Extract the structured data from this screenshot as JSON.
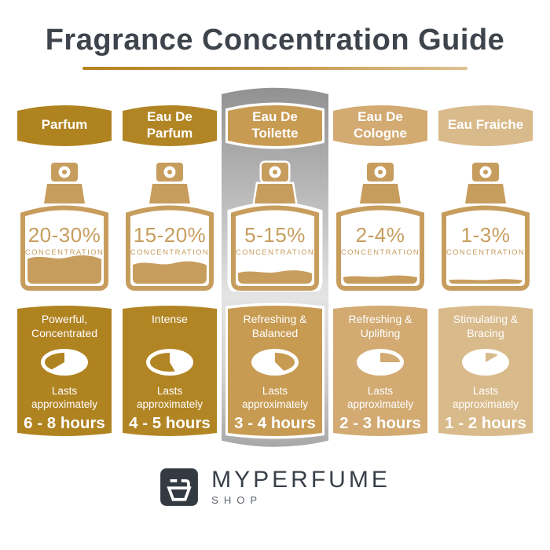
{
  "title": "Fragrance Concentration Guide",
  "theme": {
    "title_color": "#3e444c",
    "underline_gradient": [
      "#b3831e",
      "#dec292"
    ],
    "bottle_gold": "#c79d5e",
    "highlight_strip_grays": [
      "#8f8f8f",
      "#e4e4e4",
      "#a4a4a4"
    ],
    "logo_square": "#343a42"
  },
  "columns": [
    {
      "name": "Parfum",
      "color": "#b08321",
      "concentration_range": "20-30%",
      "concentration_label": "CONCENTRATION",
      "fill_percent": 40,
      "traits": "Powerful, Concentrated",
      "lasts_label": "Lasts approximately",
      "duration": "6 - 8 hours",
      "clock_gold": [
        240,
        360
      ],
      "highlighted": false
    },
    {
      "name": "Eau De Parfum",
      "color": "#b28524",
      "concentration_range": "15-20%",
      "concentration_label": "CONCENTRATION",
      "fill_percent": 31,
      "traits": "Intense",
      "lasts_label": "Lasts approximately",
      "duration": "4 - 5 hours",
      "clock_gold": [
        150,
        360
      ],
      "highlighted": false
    },
    {
      "name": "Eau De Toilette",
      "color": "#c89b53",
      "concentration_range": "5-15%",
      "concentration_label": "CONCENTRATION",
      "fill_percent": 18,
      "traits": "Refreshing & Balanced",
      "lasts_label": "Lasts approximately",
      "duration": "3 - 4 hours",
      "clock_gold": [
        0,
        135
      ],
      "highlighted": true
    },
    {
      "name": "Eau De Cologne",
      "color": "#d2aa72",
      "concentration_range": "2-4%",
      "concentration_label": "CONCENTRATION",
      "fill_percent": 11,
      "traits": "Refreshing & Uplifting",
      "lasts_label": "Lasts approximately",
      "duration": "2 - 3 hours",
      "clock_gold": [
        0,
        90
      ],
      "highlighted": false
    },
    {
      "name": "Eau Fraiche",
      "color": "#d9ba8b",
      "concentration_range": "1-3%",
      "concentration_label": "CONCENTRATION",
      "fill_percent": 6,
      "traits": "Stimulating & Bracing",
      "lasts_label": "Lasts approximately",
      "duration": "1 - 2 hours",
      "clock_gold": [
        0,
        60
      ],
      "highlighted": false
    }
  ],
  "footer": {
    "brand": "MYPERFUME",
    "sub": "SHOP"
  }
}
